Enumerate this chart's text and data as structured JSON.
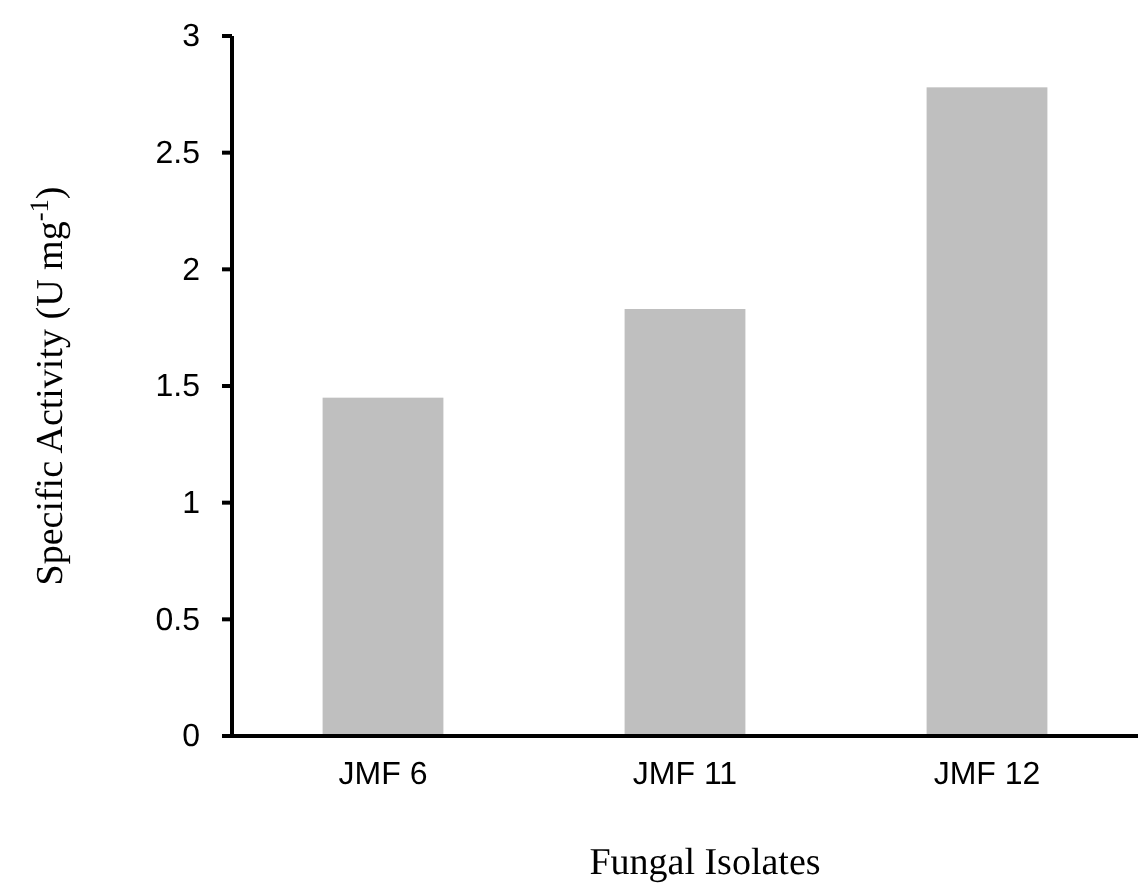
{
  "chart_data": {
    "type": "bar",
    "xlabel": "Fungal Isolates",
    "ylabel": "Specific Activity (U mg$^{-1}$)",
    "categories": [
      "JMF 6",
      "JMF 11",
      "JMF 12"
    ],
    "values": [
      1.45,
      1.83,
      2.78
    ],
    "color": "#bfbfbf",
    "ylim": [
      0,
      3
    ],
    "yticks": [
      0,
      0.5,
      1,
      1.5,
      2,
      2.5,
      3
    ],
    "grid": false
  }
}
